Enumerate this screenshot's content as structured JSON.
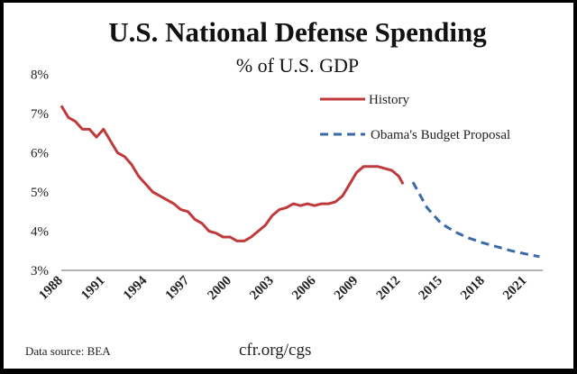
{
  "chart_data": {
    "type": "line",
    "title": "U.S. National Defense Spending",
    "subtitle": "% of U.S. GDP",
    "xlabel": "",
    "ylabel": "",
    "ylim": [
      3,
      8
    ],
    "xlim": [
      1988,
      2022
    ],
    "y_ticks": [
      "8%",
      "7%",
      "6%",
      "5%",
      "4%",
      "3%"
    ],
    "x_ticks": [
      "1988",
      "1991",
      "1994",
      "1997",
      "2000",
      "2003",
      "2006",
      "2009",
      "2012",
      "2015",
      "2018",
      "2021"
    ],
    "grid": false,
    "legend_position": "top-right",
    "series": [
      {
        "name": "History",
        "color": "#c0393b",
        "style": "solid",
        "x": [
          1988,
          1988.5,
          1989,
          1989.5,
          1990,
          1990.5,
          1991,
          1991.5,
          1992,
          1992.5,
          1993,
          1993.5,
          1994,
          1994.5,
          1995,
          1995.5,
          1996,
          1996.5,
          1997,
          1997.5,
          1998,
          1998.5,
          1999,
          1999.5,
          2000,
          2000.5,
          2001,
          2001.5,
          2002,
          2002.5,
          2003,
          2003.5,
          2004,
          2004.5,
          2005,
          2005.5,
          2006,
          2006.5,
          2007,
          2007.5,
          2008,
          2008.5,
          2009,
          2009.5,
          2010,
          2010.5,
          2011,
          2011.5,
          2012,
          2012.3
        ],
        "values": [
          7.2,
          6.9,
          6.8,
          6.6,
          6.6,
          6.4,
          6.6,
          6.3,
          6.0,
          5.9,
          5.7,
          5.4,
          5.2,
          5.0,
          4.9,
          4.8,
          4.7,
          4.55,
          4.5,
          4.3,
          4.2,
          4.0,
          3.95,
          3.85,
          3.85,
          3.75,
          3.75,
          3.85,
          4.0,
          4.15,
          4.4,
          4.55,
          4.6,
          4.7,
          4.65,
          4.7,
          4.65,
          4.7,
          4.7,
          4.75,
          4.9,
          5.2,
          5.5,
          5.65,
          5.65,
          5.65,
          5.6,
          5.55,
          5.4,
          5.2
        ]
      },
      {
        "name": "Obama's Budget Proposal",
        "color": "#3a6aa8",
        "style": "dashed",
        "x": [
          2013,
          2014,
          2015,
          2016,
          2017,
          2018,
          2019,
          2020,
          2021,
          2022
        ],
        "values": [
          5.25,
          4.6,
          4.2,
          3.98,
          3.82,
          3.7,
          3.6,
          3.5,
          3.42,
          3.35
        ]
      }
    ],
    "annotations": {
      "source": "Data source: BEA",
      "site": "cfr.org/cgs"
    }
  }
}
